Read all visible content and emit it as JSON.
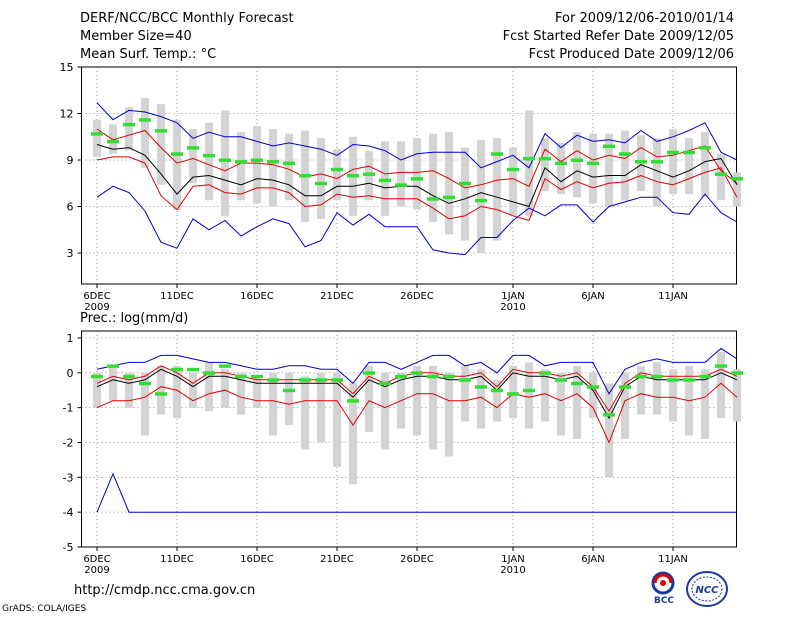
{
  "header": {
    "title": "DERF/NCC/BCC Monthly Forecast",
    "member_size": "Member Size=40",
    "variable": "Mean Surf. Temp.: °C",
    "period": "For 2009/12/06-2010/01/14",
    "started": "Fcst Started Refer Date 2009/12/05",
    "produced": "Fcst Produced Date 2009/12/06"
  },
  "footer": {
    "url": "http://cmdp.ncc.cma.gov.cn",
    "credit": "GrADS: COLA/IGES",
    "logo_left": "BCC",
    "logo_right": "NCC"
  },
  "colors": {
    "median": "#000000",
    "spread": "#dd0000",
    "extreme": "#0000cc",
    "box": "#d3d3d3",
    "obs": "#33dd33",
    "grid": "#777777"
  },
  "chart_data": [
    {
      "type": "line",
      "title": "Mean Surf. Temp.: °C",
      "ylim": [
        1,
        15
      ],
      "yticks": [
        3,
        6,
        9,
        12,
        15
      ],
      "x_ticks": [
        {
          "day": 1,
          "label": "6DEC",
          "sub": "2009"
        },
        {
          "day": 6,
          "label": "11DEC"
        },
        {
          "day": 11,
          "label": "16DEC"
        },
        {
          "day": 16,
          "label": "21DEC"
        },
        {
          "day": 21,
          "label": "26DEC"
        },
        {
          "day": 27,
          "label": "1JAN",
          "sub": "2010"
        },
        {
          "day": 32,
          "label": "6JAN"
        },
        {
          "day": 37,
          "label": "11JAN"
        }
      ],
      "series": [
        {
          "name": "max",
          "values": [
            12.7,
            11.6,
            12.2,
            12.1,
            11.8,
            11.4,
            10.4,
            10.8,
            10.5,
            10.5,
            10.2,
            9.9,
            10.1,
            9.9,
            9.7,
            9.3,
            10.0,
            9.9,
            9.6,
            9.0,
            9.4,
            9.5,
            9.5,
            9.5,
            8.5,
            8.9,
            9.3,
            8.5,
            10.7,
            9.8,
            10.6,
            10.2,
            10.3,
            10.1,
            10.9,
            10.2,
            10.5,
            10.9,
            11.4,
            9.5,
            9.0
          ]
        },
        {
          "name": "upper",
          "values": [
            11.0,
            10.3,
            10.6,
            10.9,
            9.8,
            8.8,
            9.1,
            8.7,
            8.3,
            8.8,
            8.8,
            8.7,
            8.4,
            7.9,
            8.1,
            7.8,
            8.4,
            8.6,
            8.1,
            8.2,
            8.2,
            8.3,
            7.8,
            7.2,
            7.4,
            7.7,
            7.8,
            7.3,
            9.7,
            8.9,
            9.6,
            9.0,
            9.3,
            9.1,
            9.8,
            9.2,
            9.3,
            9.6,
            9.9,
            8.3,
            7.5
          ]
        },
        {
          "name": "median",
          "values": [
            10.0,
            9.7,
            9.8,
            9.3,
            8.1,
            6.8,
            7.9,
            8.0,
            7.7,
            7.4,
            7.8,
            7.7,
            7.4,
            6.7,
            6.7,
            7.3,
            7.3,
            7.5,
            7.2,
            7.3,
            7.3,
            6.7,
            6.2,
            6.5,
            6.9,
            6.6,
            6.3,
            6.0,
            8.5,
            7.6,
            8.3,
            7.9,
            8.0,
            8.0,
            8.7,
            8.3,
            7.9,
            8.3,
            8.9,
            9.1,
            7.4
          ]
        },
        {
          "name": "lower",
          "values": [
            9.0,
            9.2,
            9.2,
            8.8,
            6.7,
            5.8,
            7.3,
            7.4,
            6.9,
            6.8,
            7.2,
            7.2,
            6.9,
            6.0,
            6.1,
            6.8,
            6.6,
            6.7,
            6.5,
            6.5,
            6.5,
            5.9,
            5.2,
            5.4,
            6.0,
            5.8,
            5.4,
            5.1,
            7.8,
            7.1,
            7.6,
            7.2,
            7.5,
            7.6,
            8.0,
            7.6,
            7.4,
            7.8,
            8.2,
            8.5,
            6.6
          ]
        },
        {
          "name": "min",
          "values": [
            6.6,
            7.3,
            6.9,
            5.7,
            3.7,
            3.3,
            5.2,
            4.5,
            5.1,
            4.1,
            4.7,
            5.2,
            4.9,
            3.4,
            3.8,
            5.6,
            4.8,
            5.5,
            4.7,
            4.7,
            4.7,
            3.2,
            3.0,
            2.9,
            4.0,
            4.0,
            5.1,
            5.9,
            5.4,
            6.1,
            6.1,
            5.0,
            6.0,
            6.3,
            6.6,
            6.6,
            5.6,
            5.5,
            6.8,
            5.6,
            5.0
          ]
        }
      ],
      "boxes": [
        [
          9.2,
          11.6
        ],
        [
          9.4,
          11.3
        ],
        [
          9.6,
          12.4
        ],
        [
          8.5,
          13.0
        ],
        [
          7.4,
          12.6
        ],
        [
          5.8,
          11.6
        ],
        [
          7.5,
          11.0
        ],
        [
          6.4,
          11.4
        ],
        [
          5.4,
          12.2
        ],
        [
          6.4,
          10.8
        ],
        [
          6.2,
          11.2
        ],
        [
          6.0,
          11.0
        ],
        [
          6.4,
          10.7
        ],
        [
          5.0,
          10.9
        ],
        [
          5.2,
          10.4
        ],
        [
          6.4,
          9.7
        ],
        [
          5.4,
          10.5
        ],
        [
          6.4,
          9.6
        ],
        [
          5.4,
          10.2
        ],
        [
          6.0,
          10.2
        ],
        [
          5.8,
          10.4
        ],
        [
          5.0,
          10.7
        ],
        [
          4.2,
          10.8
        ],
        [
          3.8,
          9.8
        ],
        [
          3.0,
          10.3
        ],
        [
          3.8,
          10.4
        ],
        [
          5.4,
          9.8
        ],
        [
          5.4,
          12.2
        ],
        [
          7.0,
          10.4
        ],
        [
          6.8,
          10.1
        ],
        [
          6.6,
          10.8
        ],
        [
          6.2,
          10.7
        ],
        [
          6.0,
          10.7
        ],
        [
          6.4,
          10.9
        ],
        [
          7.0,
          10.6
        ],
        [
          6.0,
          10.4
        ],
        [
          6.8,
          11.0
        ],
        [
          6.8,
          10.4
        ],
        [
          6.6,
          10.8
        ],
        [
          6.4,
          9.4
        ],
        [
          6.0,
          8.2
        ]
      ],
      "observed": [
        10.7,
        10.2,
        11.3,
        11.6,
        10.9,
        9.4,
        9.8,
        9.3,
        9.0,
        8.9,
        9.0,
        8.9,
        8.8,
        8.0,
        7.5,
        8.4,
        8.0,
        8.1,
        7.7,
        7.4,
        7.8,
        6.5,
        6.6,
        7.5,
        6.4,
        9.4,
        8.4,
        9.1,
        9.1,
        8.8,
        9.0,
        8.8,
        9.9,
        9.4,
        8.9,
        8.9,
        9.5,
        9.5,
        9.8,
        8.1,
        7.8
      ]
    },
    {
      "type": "line",
      "title": "Prec.: log(mm/d)",
      "ylim": [
        -5,
        1.2
      ],
      "yticks": [
        -5,
        -4,
        -3,
        -2,
        -1,
        0,
        1
      ],
      "x_ticks": [
        {
          "day": 1,
          "label": "6DEC",
          "sub": "2009"
        },
        {
          "day": 6,
          "label": "11DEC"
        },
        {
          "day": 11,
          "label": "16DEC"
        },
        {
          "day": 16,
          "label": "21DEC"
        },
        {
          "day": 21,
          "label": "26DEC"
        },
        {
          "day": 27,
          "label": "1JAN",
          "sub": "2010"
        },
        {
          "day": 32,
          "label": "6JAN"
        },
        {
          "day": 37,
          "label": "11JAN"
        }
      ],
      "series": [
        {
          "name": "max",
          "values": [
            0.1,
            0.2,
            0.3,
            0.3,
            0.5,
            0.5,
            0.4,
            0.3,
            0.3,
            0.2,
            0.1,
            0.1,
            0.2,
            0.2,
            0.1,
            0.1,
            -0.3,
            0.3,
            0.3,
            0.1,
            0.3,
            0.5,
            0.5,
            0.2,
            0.3,
            0.0,
            0.5,
            0.5,
            0.2,
            0.3,
            0.3,
            0.3,
            -0.6,
            0.1,
            0.3,
            0.4,
            0.3,
            0.3,
            0.3,
            0.7,
            0.4
          ]
        },
        {
          "name": "upper",
          "values": [
            -0.3,
            -0.1,
            -0.2,
            -0.1,
            0.2,
            0.0,
            -0.3,
            0.0,
            0.0,
            -0.1,
            -0.2,
            -0.2,
            -0.2,
            -0.2,
            -0.2,
            -0.2,
            -0.6,
            -0.1,
            -0.3,
            -0.1,
            0.0,
            0.0,
            -0.1,
            -0.1,
            0.0,
            -0.4,
            0.1,
            0.0,
            0.0,
            -0.1,
            0.0,
            -0.4,
            -1.1,
            -0.3,
            0.0,
            -0.1,
            -0.1,
            -0.1,
            -0.1,
            0.1,
            -0.1
          ]
        },
        {
          "name": "median",
          "values": [
            -0.4,
            -0.2,
            -0.3,
            -0.2,
            0.1,
            -0.1,
            -0.4,
            -0.1,
            -0.1,
            -0.2,
            -0.3,
            -0.3,
            -0.3,
            -0.3,
            -0.3,
            -0.3,
            -0.7,
            -0.2,
            -0.4,
            -0.2,
            -0.1,
            -0.1,
            -0.2,
            -0.2,
            -0.1,
            -0.5,
            0.0,
            -0.1,
            -0.1,
            -0.2,
            -0.1,
            -0.5,
            -1.3,
            -0.4,
            -0.1,
            -0.2,
            -0.2,
            -0.2,
            -0.2,
            0.0,
            -0.2
          ]
        },
        {
          "name": "lower",
          "values": [
            -1.0,
            -0.8,
            -0.8,
            -0.7,
            -0.4,
            -0.5,
            -0.8,
            -0.6,
            -0.5,
            -0.7,
            -0.8,
            -0.8,
            -0.9,
            -0.8,
            -0.8,
            -0.8,
            -1.5,
            -0.8,
            -1.0,
            -0.8,
            -0.6,
            -0.6,
            -0.8,
            -0.8,
            -0.7,
            -1.0,
            -0.6,
            -0.7,
            -0.6,
            -0.8,
            -0.6,
            -1.0,
            -2.0,
            -0.8,
            -0.6,
            -0.7,
            -0.7,
            -0.8,
            -0.7,
            -0.3,
            -0.7
          ]
        },
        {
          "name": "min",
          "values": [
            -4.0,
            -2.9,
            -4.0,
            -4.0,
            -4.0,
            -4.0,
            -4.0,
            -4.0,
            -4.0,
            -4.0,
            -4.0,
            -4.0,
            -4.0,
            -4.0,
            -4.0,
            -4.0,
            -4.0,
            -4.0,
            -4.0,
            -4.0,
            -4.0,
            -4.0,
            -4.0,
            -4.0,
            -4.0,
            -4.0,
            -4.0,
            -4.0,
            -4.0,
            -4.0,
            -4.0,
            -4.0,
            -4.0,
            -4.0,
            -4.0,
            -4.0,
            -4.0,
            -4.0,
            -4.0,
            -4.0,
            -4.0
          ]
        },
        {
          "name": "max_drop",
          "values": []
        }
      ],
      "boxes": [
        [
          -1.0,
          0.0
        ],
        [
          -0.8,
          0.2
        ],
        [
          -1.0,
          0.0
        ],
        [
          -1.8,
          0.0
        ],
        [
          -1.2,
          0.2
        ],
        [
          -1.3,
          0.2
        ],
        [
          -1.0,
          0.0
        ],
        [
          -1.1,
          0.3
        ],
        [
          -1.0,
          0.1
        ],
        [
          -1.2,
          0.0
        ],
        [
          -1.0,
          -0.1
        ],
        [
          -1.8,
          0.0
        ],
        [
          -1.5,
          0.0
        ],
        [
          -2.2,
          -0.1
        ],
        [
          -2.0,
          0.0
        ],
        [
          -2.7,
          0.0
        ],
        [
          -3.2,
          -0.3
        ],
        [
          -1.7,
          0.2
        ],
        [
          -2.2,
          0.0
        ],
        [
          -1.6,
          0.0
        ],
        [
          -1.8,
          0.2
        ],
        [
          -2.2,
          0.2
        ],
        [
          -2.4,
          0.0
        ],
        [
          -1.4,
          0.2
        ],
        [
          -1.6,
          0.1
        ],
        [
          -1.4,
          -0.2
        ],
        [
          -1.3,
          0.2
        ],
        [
          -1.6,
          0.3
        ],
        [
          -1.4,
          0.1
        ],
        [
          -1.8,
          0.0
        ],
        [
          -1.9,
          0.2
        ],
        [
          -1.3,
          0.0
        ],
        [
          -3.0,
          -0.3
        ],
        [
          -1.9,
          0.0
        ],
        [
          -1.2,
          0.2
        ],
        [
          -1.2,
          0.3
        ],
        [
          -1.4,
          0.1
        ],
        [
          -1.8,
          0.2
        ],
        [
          -1.9,
          0.1
        ],
        [
          -1.3,
          0.6
        ],
        [
          -1.4,
          0.1
        ]
      ],
      "observed": [
        -0.1,
        0.2,
        -0.1,
        -0.3,
        -0.6,
        0.1,
        0.1,
        0.0,
        0.2,
        -0.1,
        -0.1,
        -0.2,
        -0.5,
        -0.2,
        -0.2,
        -0.2,
        -0.8,
        0.0,
        -0.3,
        -0.1,
        0.0,
        -0.1,
        -0.1,
        -0.2,
        -0.4,
        -0.5,
        -0.6,
        -0.5,
        0.0,
        -0.2,
        -0.3,
        -0.4,
        -1.2,
        -0.4,
        -0.1,
        -0.1,
        -0.2,
        -0.2,
        -0.1,
        0.2,
        0.0
      ]
    }
  ]
}
